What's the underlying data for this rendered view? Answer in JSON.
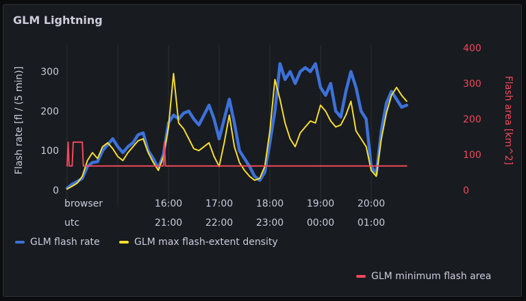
{
  "panel": {
    "title": "GLM Lightning"
  },
  "chart_data": {
    "type": "line",
    "title": "GLM Lightning",
    "ylabel_left": "Flash rate [fl / (5 min)]",
    "ylabel_right": "Flash area [km^2]",
    "ylim_left": [
      0,
      360
    ],
    "ylim_right": [
      0,
      400
    ],
    "yticks_left": [
      "0",
      "100",
      "200",
      "300"
    ],
    "yticks_right": [
      "0",
      "100",
      "200",
      "300",
      "400"
    ],
    "xtick_rows": [
      {
        "label": "browser",
        "ticks": [
          "16:00",
          "17:00",
          "18:00",
          "19:00",
          "20:00"
        ]
      },
      {
        "label": "utc",
        "ticks": [
          "21:00",
          "22:00",
          "23:00",
          "00:00",
          "01:00"
        ]
      }
    ],
    "x_hours": [
      14.0,
      15.0,
      16.0,
      17.0,
      18.0,
      19.0,
      20.0
    ],
    "series": [
      {
        "name": "GLM flash rate",
        "axis": "left",
        "color": "#3d71d9",
        "points": [
          [
            14.0,
            5
          ],
          [
            14.1,
            15
          ],
          [
            14.2,
            22
          ],
          [
            14.3,
            30
          ],
          [
            14.4,
            60
          ],
          [
            14.5,
            70
          ],
          [
            14.6,
            72
          ],
          [
            14.7,
            100
          ],
          [
            14.8,
            115
          ],
          [
            14.9,
            130
          ],
          [
            15.0,
            110
          ],
          [
            15.1,
            95
          ],
          [
            15.2,
            110
          ],
          [
            15.3,
            120
          ],
          [
            15.4,
            140
          ],
          [
            15.5,
            145
          ],
          [
            15.6,
            100
          ],
          [
            15.7,
            80
          ],
          [
            15.8,
            55
          ],
          [
            15.9,
            90
          ],
          [
            16.0,
            170
          ],
          [
            16.1,
            190
          ],
          [
            16.2,
            180
          ],
          [
            16.3,
            195
          ],
          [
            16.4,
            200
          ],
          [
            16.5,
            180
          ],
          [
            16.6,
            165
          ],
          [
            16.7,
            190
          ],
          [
            16.8,
            215
          ],
          [
            16.9,
            180
          ],
          [
            17.0,
            130
          ],
          [
            17.1,
            180
          ],
          [
            17.2,
            230
          ],
          [
            17.3,
            170
          ],
          [
            17.4,
            100
          ],
          [
            17.5,
            80
          ],
          [
            17.6,
            60
          ],
          [
            17.7,
            35
          ],
          [
            17.8,
            25
          ],
          [
            17.9,
            45
          ],
          [
            18.0,
            120
          ],
          [
            18.1,
            200
          ],
          [
            18.2,
            320
          ],
          [
            18.3,
            280
          ],
          [
            18.4,
            300
          ],
          [
            18.5,
            270
          ],
          [
            18.6,
            300
          ],
          [
            18.7,
            310
          ],
          [
            18.8,
            300
          ],
          [
            18.9,
            320
          ],
          [
            19.0,
            260
          ],
          [
            19.1,
            240
          ],
          [
            19.2,
            270
          ],
          [
            19.3,
            200
          ],
          [
            19.4,
            185
          ],
          [
            19.5,
            250
          ],
          [
            19.6,
            300
          ],
          [
            19.7,
            260
          ],
          [
            19.8,
            200
          ],
          [
            19.9,
            180
          ],
          [
            20.0,
            60
          ],
          [
            20.1,
            40
          ],
          [
            20.2,
            150
          ],
          [
            20.3,
            220
          ],
          [
            20.4,
            250
          ],
          [
            20.5,
            230
          ],
          [
            20.6,
            210
          ],
          [
            20.7,
            215
          ]
        ]
      },
      {
        "name": "GLM max flash-extent density",
        "axis": "left",
        "color": "#fade2a",
        "points": [
          [
            14.0,
            3
          ],
          [
            14.1,
            10
          ],
          [
            14.2,
            18
          ],
          [
            14.3,
            35
          ],
          [
            14.4,
            75
          ],
          [
            14.5,
            95
          ],
          [
            14.6,
            80
          ],
          [
            14.7,
            110
          ],
          [
            14.8,
            120
          ],
          [
            14.9,
            105
          ],
          [
            15.0,
            85
          ],
          [
            15.1,
            75
          ],
          [
            15.2,
            95
          ],
          [
            15.3,
            110
          ],
          [
            15.4,
            125
          ],
          [
            15.5,
            130
          ],
          [
            15.6,
            95
          ],
          [
            15.7,
            70
          ],
          [
            15.8,
            50
          ],
          [
            15.9,
            85
          ],
          [
            16.0,
            160
          ],
          [
            16.1,
            295
          ],
          [
            16.2,
            170
          ],
          [
            16.3,
            155
          ],
          [
            16.4,
            130
          ],
          [
            16.5,
            105
          ],
          [
            16.6,
            100
          ],
          [
            16.7,
            110
          ],
          [
            16.8,
            120
          ],
          [
            16.9,
            85
          ],
          [
            17.0,
            60
          ],
          [
            17.1,
            120
          ],
          [
            17.2,
            190
          ],
          [
            17.3,
            110
          ],
          [
            17.4,
            70
          ],
          [
            17.5,
            50
          ],
          [
            17.6,
            35
          ],
          [
            17.7,
            25
          ],
          [
            17.8,
            30
          ],
          [
            17.9,
            60
          ],
          [
            18.0,
            150
          ],
          [
            18.1,
            280
          ],
          [
            18.2,
            230
          ],
          [
            18.3,
            170
          ],
          [
            18.4,
            130
          ],
          [
            18.5,
            110
          ],
          [
            18.6,
            145
          ],
          [
            18.7,
            160
          ],
          [
            18.8,
            175
          ],
          [
            18.9,
            170
          ],
          [
            19.0,
            215
          ],
          [
            19.1,
            200
          ],
          [
            19.2,
            175
          ],
          [
            19.3,
            160
          ],
          [
            19.4,
            165
          ],
          [
            19.5,
            190
          ],
          [
            19.6,
            225
          ],
          [
            19.7,
            150
          ],
          [
            19.8,
            130
          ],
          [
            19.9,
            110
          ],
          [
            20.0,
            50
          ],
          [
            20.1,
            35
          ],
          [
            20.2,
            130
          ],
          [
            20.3,
            195
          ],
          [
            20.4,
            240
          ],
          [
            20.5,
            260
          ],
          [
            20.6,
            240
          ],
          [
            20.7,
            225
          ]
        ]
      },
      {
        "name": "GLM minimum flash area",
        "axis": "right",
        "color": "#f2495c",
        "points": [
          [
            14.0,
            68
          ],
          [
            14.02,
            135
          ],
          [
            14.04,
            68
          ],
          [
            14.1,
            68
          ],
          [
            14.12,
            135
          ],
          [
            14.3,
            135
          ],
          [
            14.32,
            68
          ],
          [
            15.9,
            68
          ],
          [
            15.92,
            135
          ],
          [
            15.94,
            68
          ],
          [
            20.7,
            68
          ]
        ]
      }
    ]
  },
  "legend": {
    "flash_rate": "GLM flash rate",
    "max_density": "GLM max flash-extent density",
    "min_area": "GLM minimum flash area"
  },
  "colors": {
    "blue": "#3d71d9",
    "yellow": "#fade2a",
    "red": "#f2495c",
    "panel_bg": "#181b1f"
  }
}
